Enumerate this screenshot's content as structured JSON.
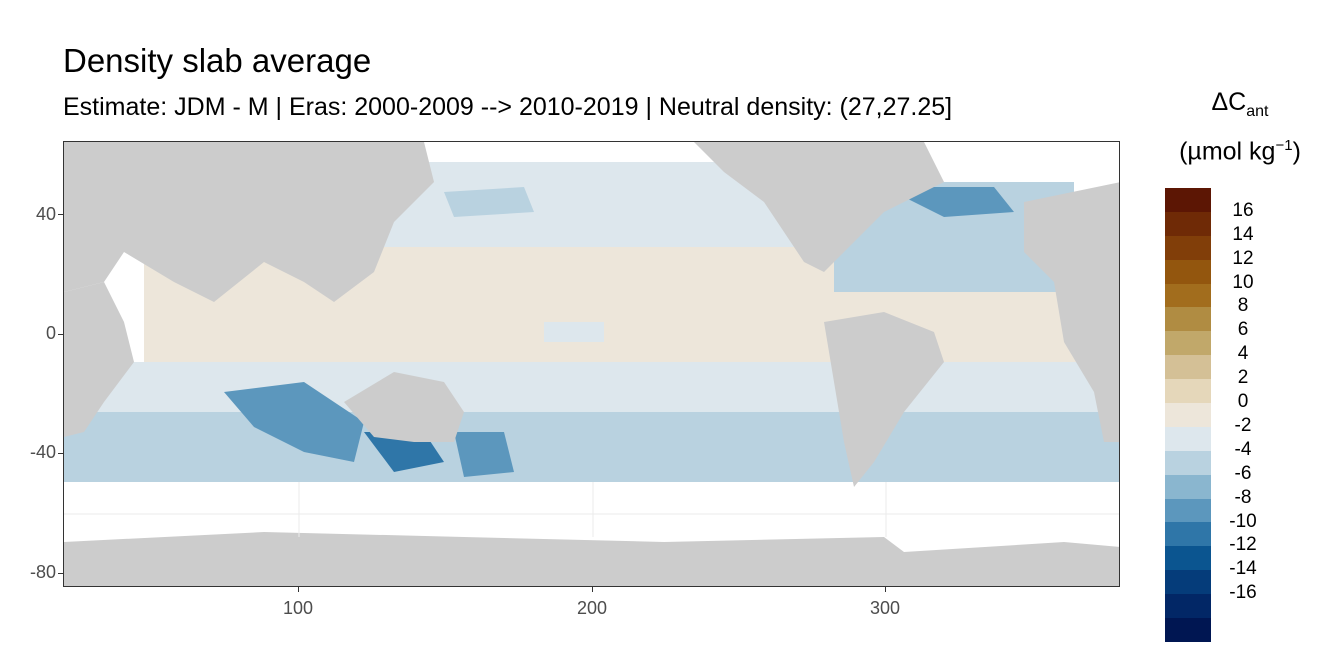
{
  "title": "Density slab average",
  "subtitle": "Estimate: JDM - M | Eras: 2000-2009 --> 2010-2019 | Neutral density: (27,27.25]",
  "legend": {
    "title_main": "ΔC",
    "title_sub": "ant",
    "unit_open": "(µmol kg",
    "unit_sup": "−1",
    "unit_close": ")",
    "labels": [
      "16",
      "14",
      "12",
      "10",
      "8",
      "6",
      "4",
      "2",
      "0",
      "-2",
      "-4",
      "-6",
      "-8",
      "-10",
      "-12",
      "-14",
      "-16"
    ],
    "colors": [
      "#5c1604",
      "#6f2a06",
      "#813e09",
      "#93560e",
      "#a26d1d",
      "#b08c42",
      "#c1a86a",
      "#d4c096",
      "#e5d7ba",
      "#ede6da",
      "#dde7ed",
      "#b9d2e0",
      "#8ab6cf",
      "#5c97bd",
      "#2f76a8",
      "#0b5590",
      "#053c7a",
      "#022766",
      "#001652"
    ]
  },
  "axes": {
    "x_ticks": [
      100,
      200,
      300
    ],
    "x_tick_labels": [
      "100",
      "200",
      "300"
    ],
    "y_ticks": [
      40,
      0,
      -40,
      -80
    ],
    "y_tick_labels": [
      "40",
      "0",
      "-40",
      "-80"
    ],
    "x_range": [
      20,
      380
    ],
    "y_range": [
      -85,
      65
    ]
  },
  "map_colors": {
    "land": "#cccccc",
    "panel_background": "#ffffff",
    "grid": "#ebebeb"
  }
}
